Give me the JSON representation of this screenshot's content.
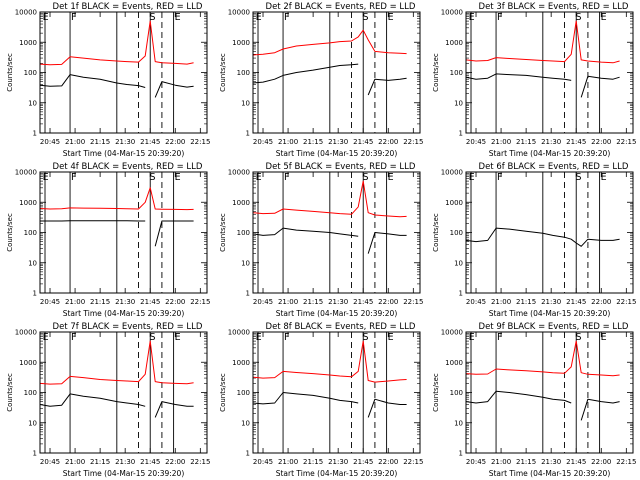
{
  "chart_data": [
    {
      "type": "line",
      "title": "Det  1f BLACK = Events, RED = LLD",
      "ylabel": "Counts/sec",
      "xlabel": "Start Time (04-Mar-15 20:39:20)",
      "xtick_labels": [
        "20:45",
        "21:00",
        "21:15",
        "21:30",
        "21:45",
        "22:00",
        "22:15"
      ],
      "ytick_labels": [
        "1",
        "10",
        "100",
        "1000",
        "10000"
      ],
      "ylim": [
        1,
        10000
      ],
      "yscale": "log",
      "region_labels": [
        "E",
        "F",
        "S",
        "E"
      ],
      "colors": {
        "events": "#000000",
        "lld": "#ff0000"
      },
      "series": [
        {
          "name": "BLACK = Events",
          "x": [
            "20:39",
            "20:45",
            "20:52",
            "20:57",
            "21:05",
            "21:15",
            "21:25",
            "21:31",
            "21:38",
            "21:42",
            "21:45",
            "21:48",
            "21:52",
            "22:00",
            "22:07",
            "22:11"
          ],
          "values": [
            38,
            35,
            36,
            85,
            70,
            60,
            45,
            40,
            37,
            32,
            null,
            15,
            50,
            38,
            33,
            35
          ]
        },
        {
          "name": "RED = LLD",
          "x": [
            "20:39",
            "20:45",
            "20:52",
            "20:57",
            "21:05",
            "21:15",
            "21:25",
            "21:31",
            "21:38",
            "21:42",
            "21:45",
            "21:48",
            "21:52",
            "22:00",
            "22:07",
            "22:11"
          ],
          "values": [
            190,
            180,
            185,
            330,
            300,
            260,
            240,
            230,
            220,
            350,
            5000,
            230,
            210,
            200,
            190,
            210
          ]
        }
      ]
    },
    {
      "type": "line",
      "title": "Det  2f BLACK = Events, RED = LLD",
      "ylabel": "Counts/sec",
      "xlabel": "Start Time (04-Mar-15 20:39:20)",
      "xtick_labels": [
        "20:45",
        "21:00",
        "21:15",
        "21:30",
        "21:45",
        "22:00",
        "22:15"
      ],
      "ytick_labels": [
        "1",
        "10",
        "100",
        "1000",
        "10000"
      ],
      "ylim": [
        1,
        10000
      ],
      "yscale": "log",
      "region_labels": [
        "E",
        "F",
        "S",
        "E"
      ],
      "colors": {
        "events": "#000000",
        "lld": "#ff0000"
      },
      "series": [
        {
          "name": "BLACK = Events",
          "x": [
            "20:39",
            "20:45",
            "20:52",
            "20:57",
            "21:05",
            "21:15",
            "21:25",
            "21:31",
            "21:38",
            "21:42",
            "21:45",
            "21:48",
            "21:52",
            "22:00",
            "22:07",
            "22:11"
          ],
          "values": [
            45,
            48,
            60,
            80,
            100,
            120,
            150,
            170,
            180,
            190,
            null,
            18,
            60,
            55,
            60,
            65
          ]
        },
        {
          "name": "RED = LLD",
          "x": [
            "20:39",
            "20:45",
            "20:52",
            "20:57",
            "21:05",
            "21:15",
            "21:25",
            "21:31",
            "21:38",
            "21:42",
            "21:45",
            "21:48",
            "21:52",
            "22:00",
            "22:07",
            "22:11"
          ],
          "values": [
            380,
            400,
            450,
            600,
            750,
            850,
            950,
            1050,
            1100,
            1500,
            2500,
            1200,
            500,
            450,
            430,
            420
          ]
        }
      ]
    },
    {
      "type": "line",
      "title": "Det  3f BLACK = Events, RED = LLD",
      "ylabel": "Counts/sec",
      "xlabel": "Start Time (04-Mar-15 20:39:20)",
      "xtick_labels": [
        "20:45",
        "21:00",
        "21:15",
        "21:30",
        "21:45",
        "22:00",
        "22:15"
      ],
      "ytick_labels": [
        "1",
        "10",
        "100",
        "1000",
        "10000"
      ],
      "ylim": [
        1,
        10000
      ],
      "yscale": "log",
      "region_labels": [
        "E",
        "F",
        "S",
        "E"
      ],
      "colors": {
        "events": "#000000",
        "lld": "#ff0000"
      },
      "series": [
        {
          "name": "BLACK = Events",
          "x": [
            "20:39",
            "20:45",
            "20:52",
            "20:57",
            "21:05",
            "21:15",
            "21:25",
            "21:31",
            "21:38",
            "21:42",
            "21:45",
            "21:48",
            "21:52",
            "22:00",
            "22:07",
            "22:11"
          ],
          "values": [
            70,
            60,
            65,
            90,
            85,
            80,
            70,
            65,
            60,
            55,
            null,
            15,
            75,
            65,
            60,
            70
          ]
        },
        {
          "name": "RED = LLD",
          "x": [
            "20:39",
            "20:45",
            "20:52",
            "20:57",
            "21:05",
            "21:15",
            "21:25",
            "21:31",
            "21:38",
            "21:42",
            "21:45",
            "21:48",
            "21:52",
            "22:00",
            "22:07",
            "22:11"
          ],
          "values": [
            260,
            240,
            250,
            310,
            290,
            270,
            250,
            240,
            230,
            400,
            5000,
            260,
            240,
            220,
            210,
            240
          ]
        }
      ]
    },
    {
      "type": "line",
      "title": "Det  4f BLACK = Events, RED = LLD",
      "ylabel": "Counts/sec",
      "xlabel": "Start Time (04-Mar-15 20:39:20)",
      "xtick_labels": [
        "20:45",
        "21:00",
        "21:15",
        "21:30",
        "21:45",
        "22:00",
        "22:15"
      ],
      "ytick_labels": [
        "1",
        "10",
        "100",
        "1000",
        "10000"
      ],
      "ylim": [
        1,
        10000
      ],
      "yscale": "log",
      "region_labels": [
        "E",
        "F",
        "S",
        "E"
      ],
      "colors": {
        "events": "#000000",
        "lld": "#ff0000"
      },
      "series": [
        {
          "name": "BLACK = Events",
          "x": [
            "20:39",
            "20:45",
            "20:52",
            "20:57",
            "21:05",
            "21:15",
            "21:25",
            "21:31",
            "21:38",
            "21:42",
            "21:45",
            "21:48",
            "21:52",
            "22:00",
            "22:07",
            "22:11"
          ],
          "values": [
            240,
            240,
            240,
            245,
            245,
            245,
            245,
            245,
            240,
            240,
            null,
            35,
            240,
            240,
            240,
            240
          ]
        },
        {
          "name": "RED = LLD",
          "x": [
            "20:39",
            "20:45",
            "20:52",
            "20:57",
            "21:05",
            "21:15",
            "21:25",
            "21:31",
            "21:38",
            "21:42",
            "21:45",
            "21:48",
            "21:52",
            "22:00",
            "22:07",
            "22:11"
          ],
          "values": [
            620,
            600,
            610,
            650,
            640,
            630,
            620,
            610,
            600,
            1000,
            3000,
            600,
            590,
            580,
            570,
            580
          ]
        }
      ]
    },
    {
      "type": "line",
      "title": "Det  5f BLACK = Events, RED = LLD",
      "ylabel": "Counts/sec",
      "xlabel": "Start Time (04-Mar-15 20:39:20)",
      "xtick_labels": [
        "20:45",
        "21:00",
        "21:15",
        "21:30",
        "21:45",
        "22:00",
        "22:15"
      ],
      "ytick_labels": [
        "1",
        "10",
        "100",
        "1000",
        "10000"
      ],
      "ylim": [
        1,
        10000
      ],
      "yscale": "log",
      "region_labels": [
        "E",
        "F",
        "S",
        "E"
      ],
      "colors": {
        "events": "#000000",
        "lld": "#ff0000"
      },
      "series": [
        {
          "name": "BLACK = Events",
          "x": [
            "20:39",
            "20:45",
            "20:52",
            "20:57",
            "21:05",
            "21:15",
            "21:25",
            "21:31",
            "21:38",
            "21:42",
            "21:45",
            "21:48",
            "21:52",
            "22:00",
            "22:07",
            "22:11"
          ],
          "values": [
            90,
            80,
            85,
            140,
            120,
            110,
            100,
            90,
            80,
            75,
            null,
            20,
            100,
            90,
            80,
            80
          ]
        },
        {
          "name": "RED = LLD",
          "x": [
            "20:39",
            "20:45",
            "20:52",
            "20:57",
            "21:05",
            "21:15",
            "21:25",
            "21:31",
            "21:38",
            "21:42",
            "21:45",
            "21:48",
            "21:52",
            "22:00",
            "22:07",
            "22:11"
          ],
          "values": [
            450,
            420,
            430,
            600,
            550,
            500,
            450,
            420,
            400,
            700,
            5000,
            450,
            380,
            350,
            330,
            340
          ]
        }
      ]
    },
    {
      "type": "line",
      "title": "Det  6f BLACK = Events, RED = LLD",
      "ylabel": "Counts/sec",
      "xlabel": "Start Time (04-Mar-15 20:39:20)",
      "xtick_labels": [
        "20:45",
        "21:00",
        "21:15",
        "21:30",
        "21:45",
        "22:00",
        "22:15"
      ],
      "ytick_labels": [
        "1",
        "10",
        "100",
        "1000",
        "10000"
      ],
      "ylim": [
        1,
        10000
      ],
      "yscale": "log",
      "region_labels": [
        "E",
        "F",
        "S",
        "E"
      ],
      "colors": {
        "events": "#000000",
        "lld": "#ff0000"
      },
      "series": [
        {
          "name": "BLACK = Events",
          "x": [
            "20:39",
            "20:45",
            "20:52",
            "20:57",
            "21:05",
            "21:15",
            "21:25",
            "21:31",
            "21:38",
            "21:42",
            "21:45",
            "21:48",
            "21:52",
            "22:00",
            "22:07",
            "22:11"
          ],
          "values": [
            55,
            50,
            55,
            140,
            130,
            110,
            95,
            80,
            70,
            60,
            45,
            35,
            60,
            55,
            55,
            60
          ]
        }
      ]
    },
    {
      "type": "line",
      "title": "Det  7f BLACK = Events, RED = LLD",
      "ylabel": "Counts/sec",
      "xlabel": "Start Time (04-Mar-15 20:39:20)",
      "xtick_labels": [
        "20:45",
        "21:00",
        "21:15",
        "21:30",
        "21:45",
        "22:00",
        "22:15"
      ],
      "ytick_labels": [
        "1",
        "10",
        "100",
        "1000",
        "10000"
      ],
      "ylim": [
        1,
        10000
      ],
      "yscale": "log",
      "region_labels": [
        "E",
        "F",
        "S",
        "E"
      ],
      "colors": {
        "events": "#000000",
        "lld": "#ff0000"
      },
      "series": [
        {
          "name": "BLACK = Events",
          "x": [
            "20:39",
            "20:45",
            "20:52",
            "20:57",
            "21:05",
            "21:15",
            "21:25",
            "21:31",
            "21:38",
            "21:42",
            "21:45",
            "21:48",
            "21:52",
            "22:00",
            "22:07",
            "22:11"
          ],
          "values": [
            40,
            35,
            38,
            90,
            75,
            65,
            50,
            45,
            40,
            35,
            null,
            15,
            50,
            40,
            35,
            35
          ]
        },
        {
          "name": "RED = LLD",
          "x": [
            "20:39",
            "20:45",
            "20:52",
            "20:57",
            "21:05",
            "21:15",
            "21:25",
            "21:31",
            "21:38",
            "21:42",
            "21:45",
            "21:48",
            "21:52",
            "22:00",
            "22:07",
            "22:11"
          ],
          "values": [
            200,
            190,
            195,
            340,
            310,
            270,
            250,
            240,
            230,
            400,
            5000,
            230,
            210,
            200,
            195,
            210
          ]
        }
      ]
    },
    {
      "type": "line",
      "title": "Det  8f BLACK = Events, RED = LLD",
      "ylabel": "Counts/sec",
      "xlabel": "Start Time (04-Mar-15 20:39:20)",
      "xtick_labels": [
        "20:45",
        "21:00",
        "21:15",
        "21:30",
        "21:45",
        "22:00",
        "22:15"
      ],
      "ytick_labels": [
        "1",
        "10",
        "100",
        "1000",
        "10000"
      ],
      "ylim": [
        1,
        10000
      ],
      "yscale": "log",
      "region_labels": [
        "E",
        "F",
        "S",
        "E"
      ],
      "colors": {
        "events": "#000000",
        "lld": "#ff0000"
      },
      "series": [
        {
          "name": "BLACK = Events",
          "x": [
            "20:39",
            "20:45",
            "20:52",
            "20:57",
            "21:05",
            "21:15",
            "21:25",
            "21:31",
            "21:38",
            "21:42",
            "21:45",
            "21:48",
            "21:52",
            "22:00",
            "22:07",
            "22:11"
          ],
          "values": [
            45,
            42,
            45,
            100,
            90,
            80,
            65,
            55,
            50,
            45,
            null,
            15,
            60,
            45,
            40,
            40
          ]
        },
        {
          "name": "RED = LLD",
          "x": [
            "20:39",
            "20:45",
            "20:52",
            "20:57",
            "21:05",
            "21:15",
            "21:25",
            "21:31",
            "21:38",
            "21:42",
            "21:45",
            "21:48",
            "21:52",
            "22:00",
            "22:07",
            "22:11"
          ],
          "values": [
            320,
            300,
            310,
            500,
            460,
            420,
            380,
            350,
            330,
            500,
            5000,
            250,
            220,
            240,
            260,
            270
          ]
        }
      ]
    },
    {
      "type": "line",
      "title": "Det  9f BLACK = Events, RED = LLD",
      "ylabel": "Counts/sec",
      "xlabel": "Start Time (04-Mar-15 20:39:20)",
      "xtick_labels": [
        "20:45",
        "21:00",
        "21:15",
        "21:30",
        "21:45",
        "22:00",
        "22:15"
      ],
      "ytick_labels": [
        "1",
        "10",
        "100",
        "1000",
        "10000"
      ],
      "ylim": [
        1,
        10000
      ],
      "yscale": "log",
      "region_labels": [
        "E",
        "F",
        "S",
        "E"
      ],
      "colors": {
        "events": "#000000",
        "lld": "#ff0000"
      },
      "series": [
        {
          "name": "BLACK = Events",
          "x": [
            "20:39",
            "20:45",
            "20:52",
            "20:57",
            "21:05",
            "21:15",
            "21:25",
            "21:31",
            "21:38",
            "21:42",
            "21:45",
            "21:48",
            "21:52",
            "22:00",
            "22:07",
            "22:11"
          ],
          "values": [
            50,
            45,
            50,
            110,
            100,
            85,
            70,
            60,
            55,
            45,
            null,
            12,
            60,
            50,
            45,
            50
          ]
        },
        {
          "name": "RED = LLD",
          "x": [
            "20:39",
            "20:45",
            "20:52",
            "20:57",
            "21:05",
            "21:15",
            "21:25",
            "21:31",
            "21:38",
            "21:42",
            "21:45",
            "21:48",
            "21:52",
            "22:00",
            "22:07",
            "22:11"
          ],
          "values": [
            420,
            400,
            410,
            600,
            560,
            520,
            480,
            450,
            430,
            700,
            5000,
            450,
            400,
            380,
            360,
            380
          ]
        }
      ]
    }
  ]
}
